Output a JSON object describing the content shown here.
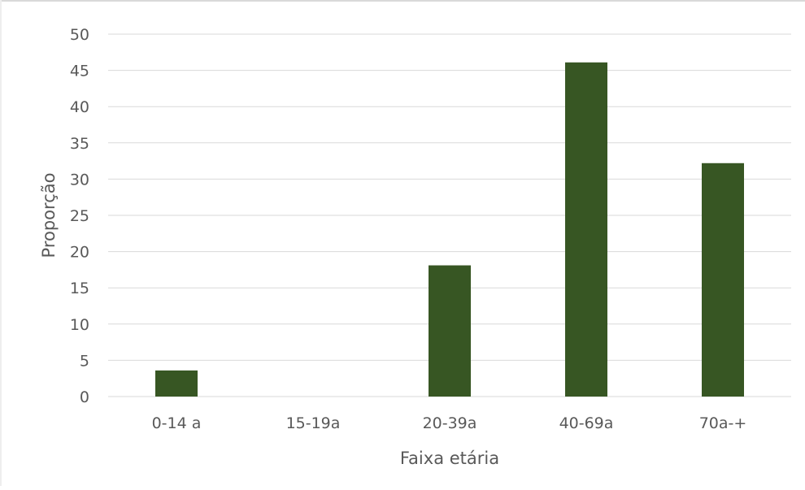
{
  "chart_data": {
    "type": "bar",
    "categories": [
      "0-14 a",
      "15-19a",
      "20-39a",
      "40-69a",
      "70a-+"
    ],
    "values": [
      3.6,
      0,
      18.1,
      46.1,
      32.2
    ],
    "title": "",
    "xlabel": "Faixa etária",
    "ylabel": "Proporção",
    "ylim": [
      0,
      50
    ],
    "yticks": [
      "0",
      "5",
      "10",
      "15",
      "20",
      "25",
      "30",
      "35",
      "40",
      "45",
      "50"
    ],
    "grid": true,
    "legend": "none",
    "colors": {
      "bar": "#375623",
      "grid": "#d9d9d9",
      "text": "#595959"
    }
  }
}
